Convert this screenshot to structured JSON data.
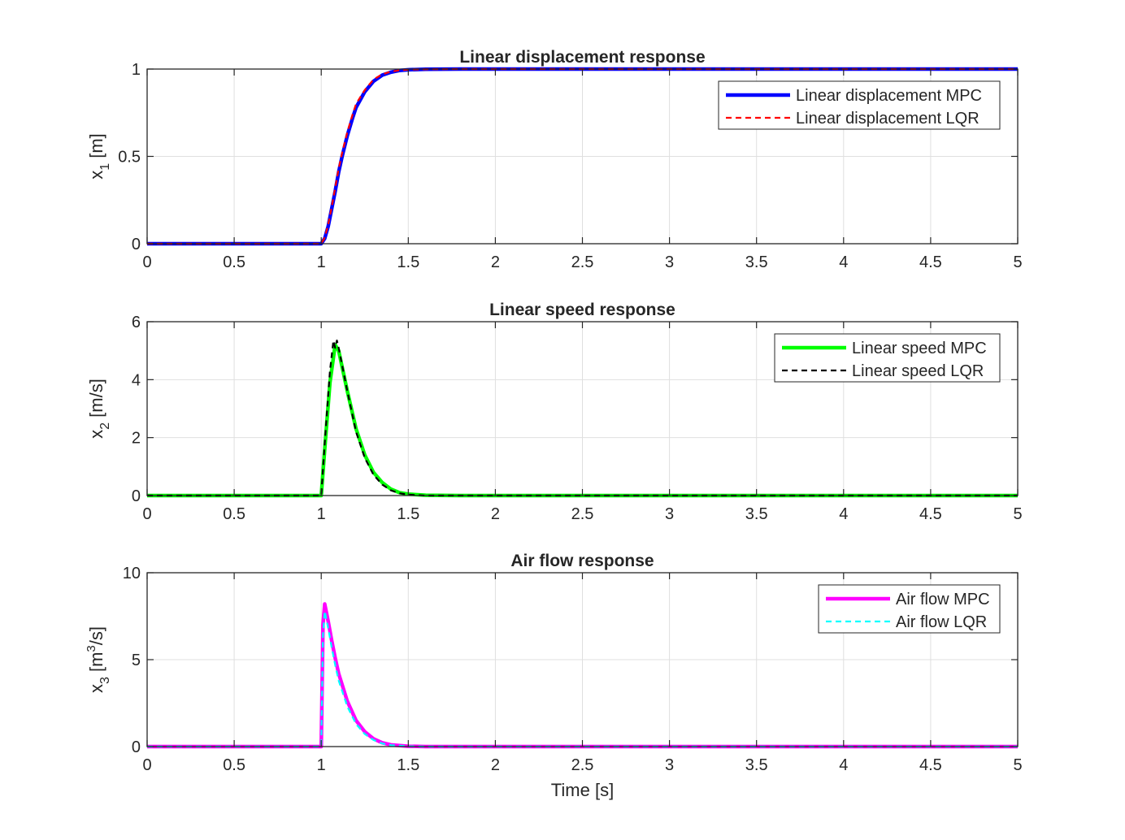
{
  "chart_data": [
    {
      "type": "line",
      "title": "Linear displacement response",
      "ylabel_base": "x",
      "ylabel_sub": "1",
      "ylabel_unit": " [m]",
      "xlabel": "",
      "xlim": [
        0,
        5
      ],
      "ylim": [
        0,
        1
      ],
      "xticks": [
        0,
        0.5,
        1,
        1.5,
        2,
        2.5,
        3,
        3.5,
        4,
        4.5,
        5
      ],
      "xtick_labels": [
        "0",
        "0.5",
        "1",
        "1.5",
        "2",
        "2.5",
        "3",
        "3.5",
        "4",
        "4.5",
        "5"
      ],
      "yticks": [
        0,
        0.5,
        1
      ],
      "ytick_labels": [
        "0",
        "0.5",
        "1"
      ],
      "grid": true,
      "legend_position": "top-right",
      "series": [
        {
          "name": "Linear displacement MPC",
          "color": "#0000ff",
          "style": "solid",
          "x": [
            0.0,
            0.5,
            0.95,
            1.0,
            1.02,
            1.04,
            1.06,
            1.08,
            1.1,
            1.12,
            1.15,
            1.18,
            1.2,
            1.25,
            1.3,
            1.35,
            1.4,
            1.45,
            1.5,
            1.6,
            1.8,
            2.0,
            3.0,
            4.0,
            5.0
          ],
          "y": [
            0.0,
            0.0,
            0.0,
            0.0,
            0.03,
            0.1,
            0.2,
            0.3,
            0.41,
            0.5,
            0.62,
            0.72,
            0.78,
            0.87,
            0.93,
            0.965,
            0.982,
            0.992,
            0.996,
            0.999,
            1.0,
            1.0,
            1.0,
            1.0,
            1.0
          ]
        },
        {
          "name": "Linear displacement LQR",
          "color": "#ff0000",
          "style": "dashed",
          "x": [
            0.0,
            0.5,
            0.95,
            1.0,
            1.02,
            1.04,
            1.06,
            1.08,
            1.1,
            1.12,
            1.15,
            1.18,
            1.2,
            1.25,
            1.3,
            1.35,
            1.4,
            1.45,
            1.5,
            1.6,
            1.8,
            2.0,
            3.0,
            4.0,
            5.0
          ],
          "y": [
            0.0,
            0.0,
            0.0,
            0.0,
            0.035,
            0.11,
            0.21,
            0.32,
            0.43,
            0.52,
            0.64,
            0.74,
            0.8,
            0.88,
            0.94,
            0.97,
            0.985,
            0.993,
            0.997,
            0.999,
            1.0,
            1.0,
            1.0,
            1.0,
            1.0
          ]
        }
      ]
    },
    {
      "type": "line",
      "title": "Linear speed response",
      "ylabel_base": "x",
      "ylabel_sub": "2",
      "ylabel_unit": " [m/s]",
      "xlabel": "",
      "xlim": [
        0,
        5
      ],
      "ylim": [
        0,
        6
      ],
      "xticks": [
        0,
        0.5,
        1,
        1.5,
        2,
        2.5,
        3,
        3.5,
        4,
        4.5,
        5
      ],
      "xtick_labels": [
        "0",
        "0.5",
        "1",
        "1.5",
        "2",
        "2.5",
        "3",
        "3.5",
        "4",
        "4.5",
        "5"
      ],
      "yticks": [
        0,
        2,
        4,
        6
      ],
      "ytick_labels": [
        "0",
        "2",
        "4",
        "6"
      ],
      "grid": true,
      "legend_position": "top-right",
      "series": [
        {
          "name": "Linear speed MPC",
          "color": "#00ff00",
          "style": "solid",
          "x": [
            0.0,
            0.5,
            0.99,
            1.0,
            1.02,
            1.05,
            1.08,
            1.1,
            1.15,
            1.2,
            1.25,
            1.3,
            1.35,
            1.4,
            1.45,
            1.5,
            1.6,
            1.8,
            2.0,
            3.0,
            4.0,
            5.0
          ],
          "y": [
            0.0,
            0.0,
            0.0,
            0.0,
            1.6,
            3.9,
            5.2,
            5.0,
            3.6,
            2.3,
            1.4,
            0.8,
            0.45,
            0.22,
            0.1,
            0.05,
            0.01,
            0.0,
            0.0,
            0.0,
            0.0,
            0.0
          ]
        },
        {
          "name": "Linear speed LQR",
          "color": "#000000",
          "style": "dashed",
          "x": [
            0.0,
            0.5,
            0.99,
            1.0,
            1.02,
            1.05,
            1.07,
            1.08,
            1.09,
            1.1,
            1.15,
            1.2,
            1.25,
            1.3,
            1.35,
            1.4,
            1.45,
            1.5,
            1.6,
            1.8,
            2.0,
            3.0,
            4.0,
            5.0
          ],
          "y": [
            0.0,
            0.0,
            0.0,
            0.0,
            1.8,
            4.3,
            5.35,
            5.1,
            5.35,
            5.1,
            3.6,
            2.2,
            1.3,
            0.72,
            0.38,
            0.18,
            0.08,
            0.03,
            0.0,
            0.0,
            0.0,
            0.0,
            0.0,
            0.0
          ]
        }
      ]
    },
    {
      "type": "line",
      "title": "Air flow response",
      "ylabel_base": "x",
      "ylabel_sub": "3",
      "ylabel_unit": " [m",
      "ylabel_sup": "3",
      "ylabel_unit_end": "/s]",
      "xlabel": "Time [s]",
      "xlim": [
        0,
        5
      ],
      "ylim": [
        0,
        10
      ],
      "xticks": [
        0,
        0.5,
        1,
        1.5,
        2,
        2.5,
        3,
        3.5,
        4,
        4.5,
        5
      ],
      "xtick_labels": [
        "0",
        "0.5",
        "1",
        "1.5",
        "2",
        "2.5",
        "3",
        "3.5",
        "4",
        "4.5",
        "5"
      ],
      "yticks": [
        0,
        5,
        10
      ],
      "ytick_labels": [
        "0",
        "5",
        "10"
      ],
      "grid": true,
      "legend_position": "top-right",
      "series": [
        {
          "name": "Air flow MPC",
          "color": "#ff00ff",
          "style": "solid",
          "x": [
            0.0,
            0.5,
            0.99,
            1.0,
            1.01,
            1.02,
            1.04,
            1.06,
            1.08,
            1.1,
            1.15,
            1.2,
            1.25,
            1.3,
            1.35,
            1.4,
            1.5,
            1.6,
            2.0,
            3.0,
            4.0,
            5.0
          ],
          "y": [
            0.0,
            0.0,
            0.0,
            0.0,
            7.0,
            8.2,
            7.2,
            6.1,
            5.1,
            4.2,
            2.6,
            1.5,
            0.85,
            0.45,
            0.22,
            0.1,
            0.02,
            0.0,
            0.0,
            0.0,
            0.0,
            0.0
          ]
        },
        {
          "name": "Air flow LQR",
          "color": "#00ffff",
          "style": "dashed",
          "x": [
            0.0,
            0.5,
            0.99,
            1.0,
            1.01,
            1.02,
            1.04,
            1.06,
            1.08,
            1.1,
            1.15,
            1.2,
            1.25,
            1.3,
            1.35,
            1.4,
            1.5,
            1.6,
            2.0,
            3.0,
            4.0,
            5.0
          ],
          "y": [
            0.0,
            0.0,
            0.0,
            0.0,
            6.4,
            7.8,
            6.8,
            5.7,
            4.7,
            3.8,
            2.3,
            1.3,
            0.72,
            0.38,
            0.18,
            0.08,
            0.015,
            0.0,
            0.0,
            0.0,
            0.0,
            0.0
          ]
        }
      ]
    }
  ]
}
